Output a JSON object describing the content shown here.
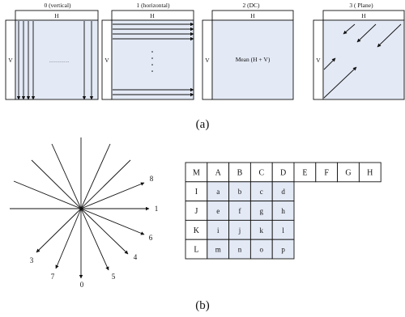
{
  "panel_a": {
    "label": "(a)",
    "modes": [
      {
        "title": "0 (vertical)",
        "top_label": "H",
        "side_label": "V",
        "center_text": "……………"
      },
      {
        "title": "1 (horizontal)",
        "top_label": "H",
        "side_label": "V",
        "center_text": ""
      },
      {
        "title": "2 (DC)",
        "top_label": "H",
        "side_label": "V",
        "center_text": "Mean (H + V)"
      },
      {
        "title": "3 ( Plane)",
        "top_label": "H",
        "side_label": "V",
        "center_text": ""
      }
    ]
  },
  "panel_b": {
    "label": "(b)",
    "direction_labels": [
      "8",
      "1",
      "6",
      "4",
      "5",
      "0",
      "7",
      "3"
    ],
    "grid": {
      "top_row": [
        "M",
        "A",
        "B",
        "C",
        "D",
        "E",
        "F",
        "G",
        "H"
      ],
      "rows": [
        [
          "I",
          "a",
          "b",
          "c",
          "d"
        ],
        [
          "J",
          "e",
          "f",
          "g",
          "h"
        ],
        [
          "K",
          "i",
          "j",
          "k",
          "l"
        ],
        [
          "L",
          "m",
          "n",
          "o",
          "p"
        ]
      ]
    }
  },
  "colors": {
    "block_fill": "#e3e9f5",
    "line": "#111111",
    "background": "#ffffff"
  }
}
